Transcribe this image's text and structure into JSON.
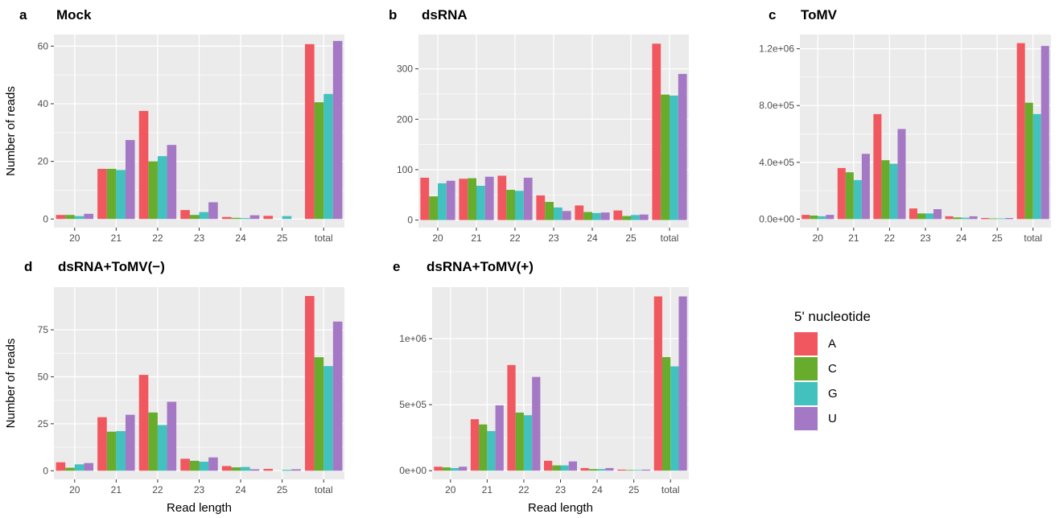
{
  "colors": {
    "A": "#F1575F",
    "C": "#67AC2C",
    "G": "#42C1BE",
    "U": "#A578C5"
  },
  "axes_text": {
    "y_title": "Number of reads",
    "x_title": "Read length"
  },
  "legend": {
    "title": "5' nucleotide",
    "items": [
      {
        "label": "A",
        "color": "#F1575F"
      },
      {
        "label": "C",
        "color": "#67AC2C"
      },
      {
        "label": "G",
        "color": "#42C1BE"
      },
      {
        "label": "U",
        "color": "#A578C5"
      }
    ]
  },
  "panels": [
    {
      "letter": "a",
      "title": "Mock"
    },
    {
      "letter": "b",
      "title": "dsRNA"
    },
    {
      "letter": "c",
      "title": "ToMV"
    },
    {
      "letter": "d",
      "title": "dsRNA+ToMV(−)"
    },
    {
      "letter": "e",
      "title": "dsRNA+ToMV(+)"
    }
  ],
  "chart_data": [
    {
      "type": "bar",
      "panel": "a",
      "title": "Mock",
      "categories": [
        "20",
        "21",
        "22",
        "23",
        "24",
        "25",
        "total"
      ],
      "xlabel": "",
      "ylabel": "Number of reads",
      "ylim": [
        -3,
        64
      ],
      "yticks": [
        0,
        20,
        40,
        60
      ],
      "yticklabels": [
        "0",
        "20",
        "40",
        "60"
      ],
      "grid": true,
      "legend": "right",
      "series": [
        {
          "name": "A",
          "values": [
            1.4,
            17.4,
            37.5,
            3.1,
            0.7,
            1.1,
            60.7
          ]
        },
        {
          "name": "C",
          "values": [
            1.4,
            17.4,
            20.0,
            1.4,
            0.4,
            0,
            40.5
          ]
        },
        {
          "name": "G",
          "values": [
            1.0,
            17.0,
            21.8,
            2.4,
            0.3,
            1.0,
            43.4
          ]
        },
        {
          "name": "U",
          "values": [
            1.8,
            27.4,
            25.7,
            5.8,
            1.3,
            0,
            61.8
          ]
        }
      ]
    },
    {
      "type": "bar",
      "panel": "b",
      "title": "dsRNA",
      "categories": [
        "20",
        "21",
        "22",
        "23",
        "24",
        "25",
        "total"
      ],
      "xlabel": "",
      "ylabel": "",
      "ylim": [
        -15,
        368
      ],
      "yticks": [
        0,
        100,
        200,
        300
      ],
      "yticklabels": [
        "0",
        "100",
        "200",
        "300"
      ],
      "grid": true,
      "legend": "right",
      "series": [
        {
          "name": "A",
          "values": [
            84,
            82,
            88,
            49,
            29,
            19,
            350
          ]
        },
        {
          "name": "C",
          "values": [
            47,
            83,
            60,
            36,
            16,
            8,
            249
          ]
        },
        {
          "name": "G",
          "values": [
            73,
            68,
            58,
            25,
            14,
            10,
            247
          ]
        },
        {
          "name": "U",
          "values": [
            78,
            86,
            84,
            18,
            15,
            11,
            290
          ]
        }
      ]
    },
    {
      "type": "bar",
      "panel": "c",
      "title": "ToMV",
      "categories": [
        "20",
        "21",
        "22",
        "23",
        "24",
        "25",
        "total"
      ],
      "xlabel": "",
      "ylabel": "",
      "ylim": [
        -60000,
        1300000
      ],
      "yticks": [
        0,
        400000,
        800000,
        1200000
      ],
      "yticklabels": [
        "0.0e+00",
        "4.0e+05",
        "8.0e+05",
        "1.2e+06"
      ],
      "grid": true,
      "legend": "right",
      "series": [
        {
          "name": "A",
          "values": [
            30000,
            360000,
            740000,
            75000,
            20000,
            8000,
            1240000
          ]
        },
        {
          "name": "C",
          "values": [
            25000,
            330000,
            415000,
            40000,
            12000,
            5000,
            820000
          ]
        },
        {
          "name": "G",
          "values": [
            20000,
            275000,
            390000,
            40000,
            10000,
            5000,
            740000
          ]
        },
        {
          "name": "U",
          "values": [
            30000,
            460000,
            635000,
            70000,
            20000,
            8000,
            1220000
          ]
        }
      ]
    },
    {
      "type": "bar",
      "panel": "d",
      "title": "dsRNA+ToMV(−)",
      "categories": [
        "20",
        "21",
        "22",
        "23",
        "24",
        "25",
        "total"
      ],
      "xlabel": "Read length",
      "ylabel": "Number of reads",
      "ylim": [
        -4.6,
        97.7
      ],
      "yticks": [
        0,
        25,
        50,
        75
      ],
      "yticklabels": [
        "0",
        "25",
        "50",
        "75"
      ],
      "grid": true,
      "legend": "right",
      "series": [
        {
          "name": "A",
          "values": [
            4.5,
            28.5,
            51.0,
            6.4,
            2.5,
            1.0,
            93.0
          ]
        },
        {
          "name": "C",
          "values": [
            1.6,
            20.8,
            31.0,
            5.3,
            1.8,
            0,
            60.4
          ]
        },
        {
          "name": "G",
          "values": [
            3.4,
            21.1,
            24.3,
            4.8,
            2.0,
            0.5,
            55.7
          ]
        },
        {
          "name": "U",
          "values": [
            4.1,
            29.8,
            36.7,
            7.1,
            0.8,
            0.8,
            79.4
          ]
        }
      ]
    },
    {
      "type": "bar",
      "panel": "e",
      "title": "dsRNA+ToMV(+)",
      "categories": [
        "20",
        "21",
        "22",
        "23",
        "24",
        "25",
        "total"
      ],
      "xlabel": "Read length",
      "ylabel": "",
      "ylim": [
        -66000,
        1390000
      ],
      "yticks": [
        0,
        500000,
        1000000
      ],
      "yticklabels": [
        "0e+00",
        "5e+05",
        "1e+06"
      ],
      "grid": true,
      "legend": "right",
      "series": [
        {
          "name": "A",
          "values": [
            30000,
            390000,
            800000,
            75000,
            20000,
            8000,
            1320000
          ]
        },
        {
          "name": "C",
          "values": [
            25000,
            350000,
            440000,
            40000,
            12000,
            5000,
            860000
          ]
        },
        {
          "name": "G",
          "values": [
            20000,
            300000,
            420000,
            40000,
            12000,
            5000,
            790000
          ]
        },
        {
          "name": "U",
          "values": [
            30000,
            495000,
            710000,
            70000,
            20000,
            8000,
            1320000
          ]
        }
      ]
    }
  ]
}
